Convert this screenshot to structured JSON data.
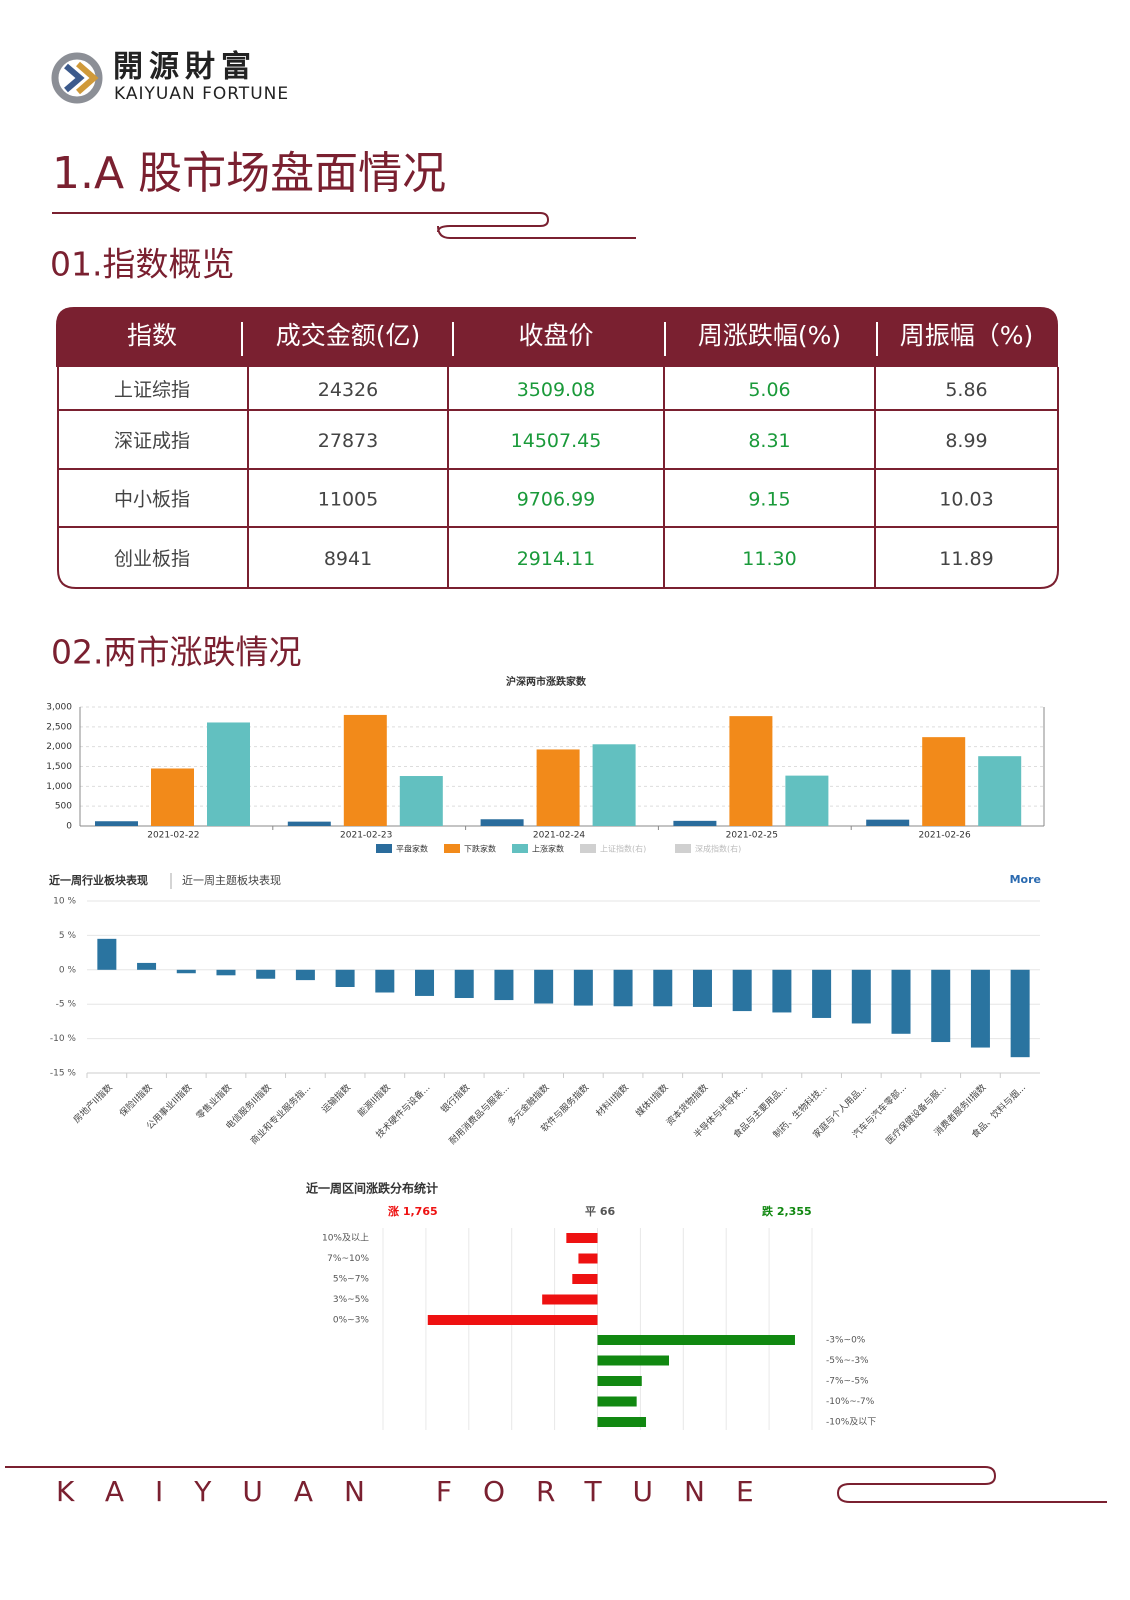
{
  "header": {
    "logo_cn": "開源財富",
    "logo_en": "KAIYUAN FORTUNE"
  },
  "section_title": "1.A 股市场盘面情况",
  "sub1": "01.指数概览",
  "table": {
    "columns": [
      "指数",
      "成交金额(亿)",
      "收盘价",
      "周涨跌幅(%)",
      "周振幅（%)"
    ],
    "rows": [
      [
        "上证综指",
        "24326",
        "3509.08",
        "5.06",
        "5.86"
      ],
      [
        "深证成指",
        "27873",
        "14507.45",
        "8.31",
        "8.99"
      ],
      [
        "中小板指",
        "11005",
        "9706.99",
        "9.15",
        "10.03"
      ],
      [
        "创业板指",
        "8941",
        "2914.11",
        "11.30",
        "11.89"
      ]
    ]
  },
  "sub2": "02.两市涨跌情况",
  "chart_data": [
    {
      "type": "bar",
      "title": "沪深两市涨跌家数",
      "categories": [
        "2021-02-22",
        "2021-02-23",
        "2021-02-24",
        "2021-02-25",
        "2021-02-26"
      ],
      "series": [
        {
          "name": "平盘家数",
          "color": "#2a6c9c",
          "values": [
            120,
            110,
            170,
            130,
            160
          ]
        },
        {
          "name": "下跌家数",
          "color": "#f28a1a",
          "values": [
            1450,
            2800,
            1930,
            2770,
            2240
          ]
        },
        {
          "name": "上涨家数",
          "color": "#62c0c0",
          "values": [
            2610,
            1260,
            2060,
            1270,
            1760
          ]
        },
        {
          "name": "上证指数(右)",
          "color": "#d0d0d0",
          "values": [
            null,
            null,
            null,
            null,
            null
          ]
        },
        {
          "name": "深成指数(右)",
          "color": "#d0d0d0",
          "values": [
            null,
            null,
            null,
            null,
            null
          ]
        }
      ],
      "ylim": [
        0,
        3000
      ],
      "yticks": [
        0,
        500,
        {
          "value": 1000,
          "label": "1,000"
        },
        {
          "value": 1500,
          "label": "1,500"
        },
        {
          "value": 2000,
          "label": "2,000"
        },
        {
          "value": 2500,
          "label": "2,500"
        },
        {
          "value": 3000,
          "label": "3,000"
        }
      ],
      "grid": true
    },
    {
      "type": "column",
      "tabs": [
        "近一周行业板块表现",
        "近一周主题板块表现"
      ],
      "link": "More",
      "categories": [
        "房地产II指数",
        "保险II指数",
        "公用事业II指数",
        "零售业指数",
        "电信服务II指数",
        "商业和专业服务指...",
        "运输指数",
        "能源II指数",
        "技术硬件与设备...",
        "银行指数",
        "耐用消费品与服装...",
        "多元金融指数",
        "软件与服务指数",
        "材料II指数",
        "媒体II指数",
        "资本货物指数",
        "半导体与半导体...",
        "食品与主要用品...",
        "制药、生物科技...",
        "家庭与个人用品...",
        "汽车与汽车零部...",
        "医疗保健设备与服...",
        "消费者服务II指数",
        "食品、饮料与烟..."
      ],
      "values": [
        4.5,
        1.0,
        -0.5,
        -0.8,
        -1.3,
        -1.5,
        -2.5,
        -3.3,
        -3.8,
        -4.1,
        -4.4,
        -4.9,
        -5.2,
        -5.3,
        -5.3,
        -5.4,
        -6.0,
        -6.2,
        -7.0,
        -7.8,
        -9.3,
        -10.5,
        -11.3,
        -12.7
      ],
      "color": "#2a74a0",
      "ylim": [
        -15,
        10
      ],
      "yticks": [
        {
          "value": 10,
          "label": "10 %"
        },
        {
          "value": 5,
          "label": "5 %"
        },
        {
          "value": 0,
          "label": "0 %"
        },
        {
          "value": -5,
          "label": "-5 %"
        },
        {
          "value": -10,
          "label": "-10 %"
        },
        {
          "value": -15,
          "label": "-15 %"
        }
      ],
      "grid": true
    },
    {
      "type": "barh",
      "title": "近一周区间涨跌分布统计",
      "xlim": [
        -1260,
        1260
      ],
      "series": [
        {
          "name": "涨",
          "color": "#ee1111",
          "total": 1765,
          "total_label": "1,765",
          "categories": [
            "10%及以上",
            "7%~10%",
            "5%~7%",
            "3%~5%",
            "0%~3%"
          ],
          "values": [
            183,
            112,
            148,
            325,
            997
          ]
        },
        {
          "name": "平",
          "color": "#555555",
          "total": 66
        },
        {
          "name": "跌",
          "color": "#118811",
          "total": 2355,
          "total_label": "2,355",
          "categories": [
            "-3%~0%",
            "-5%~-3%",
            "-7%~-5%",
            "-10%~-7%",
            "-10%及以下"
          ],
          "values": [
            1160,
            420,
            260,
            230,
            285
          ]
        }
      ],
      "grid": true
    }
  ],
  "footer": "KAIYUAN FORTUNE"
}
